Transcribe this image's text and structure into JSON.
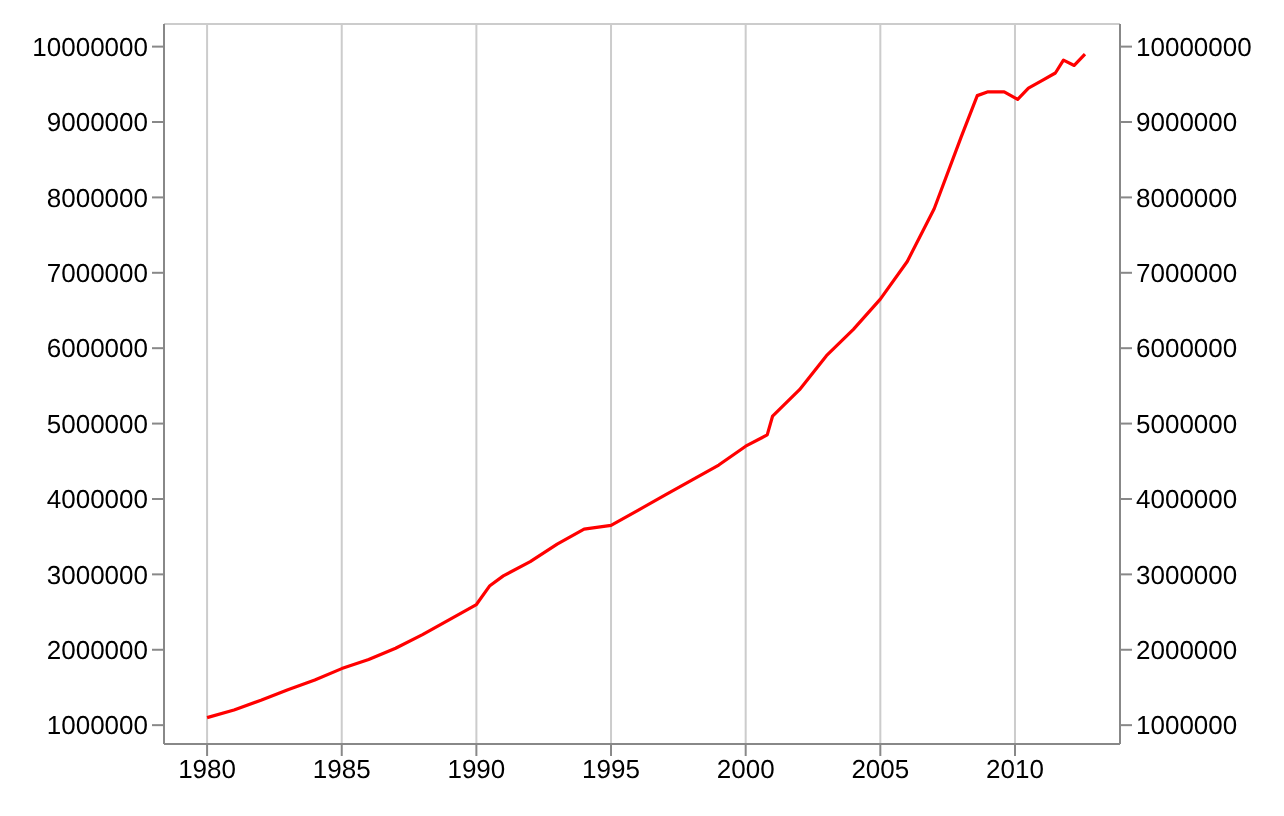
{
  "chart_data": {
    "type": "line",
    "x": [
      1980,
      1981,
      1982,
      1983,
      1984,
      1985,
      1986,
      1987,
      1988,
      1989,
      1990,
      1990.5,
      1991,
      1992,
      1993,
      1994,
      1995,
      1996,
      1997,
      1998,
      1999,
      2000,
      2000.8,
      2001,
      2002,
      2003,
      2004,
      2005,
      2006,
      2007,
      2008,
      2008.6,
      2009,
      2009.6,
      2010.1,
      2010.5,
      2011,
      2011.5,
      2011.8,
      2012.2,
      2012.6
    ],
    "series": [
      {
        "color": "#ff0000",
        "values": [
          1100000,
          1200000,
          1330000,
          1470000,
          1600000,
          1750000,
          1870000,
          2020000,
          2200000,
          2400000,
          2600000,
          2850000,
          2980000,
          3170000,
          3400000,
          3600000,
          3650000,
          3850000,
          4050000,
          4250000,
          4450000,
          4700000,
          4850000,
          5100000,
          5450000,
          5900000,
          6250000,
          6650000,
          7150000,
          7850000,
          8800000,
          9350000,
          9400000,
          9400000,
          9300000,
          9450000,
          9550000,
          9650000,
          9820000,
          9750000,
          9900000
        ]
      }
    ],
    "xlim": [
      1978.4,
      2013.9
    ],
    "xticks": [
      1980,
      1985,
      1990,
      1995,
      2000,
      2005,
      2010
    ],
    "ylim": [
      750000,
      10300000
    ],
    "yticks": [
      1000000,
      2000000,
      3000000,
      4000000,
      5000000,
      6000000,
      7000000,
      8000000,
      9000000,
      10000000
    ],
    "y2lim": [
      750000,
      10300000
    ],
    "y2ticks": [
      1000000,
      2000000,
      3000000,
      4000000,
      5000000,
      6000000,
      7000000,
      8000000,
      9000000,
      10000000
    ],
    "grid": true,
    "marker": "none",
    "line_style": "solid"
  }
}
